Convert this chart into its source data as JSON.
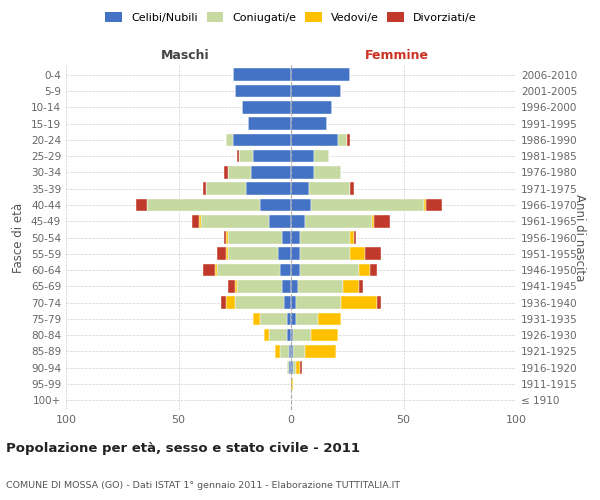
{
  "age_groups": [
    "100+",
    "95-99",
    "90-94",
    "85-89",
    "80-84",
    "75-79",
    "70-74",
    "65-69",
    "60-64",
    "55-59",
    "50-54",
    "45-49",
    "40-44",
    "35-39",
    "30-34",
    "25-29",
    "20-24",
    "15-19",
    "10-14",
    "5-9",
    "0-4"
  ],
  "birth_years": [
    "≤ 1910",
    "1911-1915",
    "1916-1920",
    "1921-1925",
    "1926-1930",
    "1931-1935",
    "1936-1940",
    "1941-1945",
    "1946-1950",
    "1951-1955",
    "1956-1960",
    "1961-1965",
    "1966-1970",
    "1971-1975",
    "1976-1980",
    "1981-1985",
    "1986-1990",
    "1991-1995",
    "1996-2000",
    "2001-2005",
    "2006-2010"
  ],
  "maschi": {
    "celibi": [
      0,
      0,
      1,
      1,
      2,
      2,
      3,
      4,
      5,
      6,
      4,
      10,
      14,
      20,
      18,
      17,
      26,
      19,
      22,
      25,
      26
    ],
    "coniugati": [
      0,
      0,
      1,
      4,
      8,
      12,
      22,
      20,
      28,
      22,
      24,
      30,
      50,
      18,
      10,
      6,
      3,
      0,
      0,
      0,
      0
    ],
    "vedovi": [
      0,
      0,
      0,
      2,
      2,
      3,
      4,
      1,
      1,
      1,
      1,
      1,
      0,
      0,
      0,
      0,
      0,
      0,
      0,
      0,
      0
    ],
    "divorziati": [
      0,
      0,
      0,
      0,
      0,
      0,
      2,
      3,
      5,
      4,
      1,
      3,
      5,
      1,
      2,
      1,
      0,
      0,
      0,
      0,
      0
    ]
  },
  "femmine": {
    "nubili": [
      0,
      0,
      1,
      1,
      1,
      2,
      2,
      3,
      4,
      4,
      4,
      6,
      9,
      8,
      10,
      10,
      21,
      16,
      18,
      22,
      26
    ],
    "coniugate": [
      0,
      0,
      1,
      5,
      8,
      10,
      20,
      20,
      26,
      22,
      22,
      30,
      50,
      18,
      12,
      7,
      4,
      0,
      0,
      0,
      0
    ],
    "vedove": [
      0,
      1,
      2,
      14,
      12,
      10,
      16,
      7,
      5,
      7,
      2,
      1,
      1,
      0,
      0,
      0,
      0,
      0,
      0,
      0,
      0
    ],
    "divorziate": [
      0,
      0,
      1,
      0,
      0,
      0,
      2,
      2,
      3,
      7,
      1,
      7,
      7,
      2,
      0,
      0,
      1,
      0,
      0,
      0,
      0
    ]
  },
  "colors": {
    "celibi": "#4472c4",
    "coniugati": "#c5d9a0",
    "vedovi": "#ffc000",
    "divorziati": "#c0392b"
  },
  "xlim": 100,
  "title": "Popolazione per età, sesso e stato civile - 2011",
  "subtitle": "COMUNE DI MOSSA (GO) - Dati ISTAT 1° gennaio 2011 - Elaborazione TUTTITALIA.IT",
  "ylabel_left": "Fasce di età",
  "ylabel_right": "Anni di nascita",
  "xlabel_maschi": "Maschi",
  "xlabel_femmine": "Femmine",
  "maschi_label_color": "#444444",
  "femmine_label_color": "#cc3322",
  "bg_color": "#ffffff",
  "grid_color": "#cccccc"
}
